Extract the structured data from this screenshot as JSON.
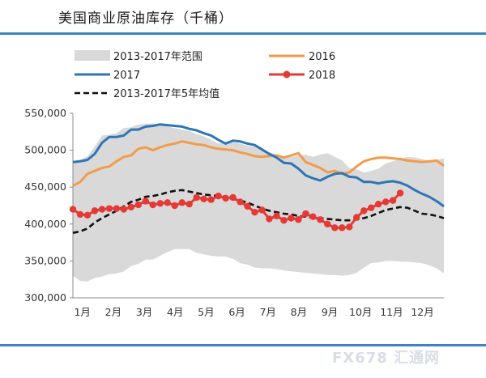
{
  "title": "美国商业原油库存（千桶）",
  "watermark": "FX678 汇通网",
  "chart_data": {
    "type": "line",
    "categories": [
      "1月",
      "2月",
      "3月",
      "4月",
      "5月",
      "6月",
      "7月",
      "8月",
      "9月",
      "10月",
      "11月",
      "12月"
    ],
    "ylim": [
      300000,
      550000
    ],
    "yticks": [
      300000,
      350000,
      400000,
      450000,
      500000,
      550000
    ],
    "ytick_labels": [
      "300,000",
      "350,000",
      "400,000",
      "450,000",
      "500,000",
      "550,000"
    ],
    "xlabel": "",
    "ylabel": "",
    "grid": false,
    "legend_position": "top",
    "range_band": {
      "name": "2013-2017年 范围",
      "color": "#d9d9d9",
      "x": [
        1,
        2,
        3,
        4,
        5,
        6,
        7,
        8,
        9,
        10,
        11,
        12,
        13,
        14,
        15,
        16,
        17,
        18,
        19,
        20,
        21,
        22,
        23,
        24,
        25,
        26,
        27,
        28,
        29,
        30,
        31,
        32,
        33,
        34,
        35,
        36,
        37,
        38,
        39,
        40,
        41,
        42,
        43,
        44,
        45,
        46,
        47,
        48,
        49,
        50,
        51,
        52
      ],
      "upper": [
        485000,
        487000,
        492000,
        505000,
        520000,
        521000,
        523000,
        530000,
        531000,
        535000,
        536000,
        536000,
        534000,
        532000,
        530000,
        528000,
        526000,
        522000,
        519000,
        514000,
        509000,
        512000,
        511000,
        509000,
        506000,
        505000,
        502000,
        497000,
        494000,
        492000,
        491000,
        493000,
        494000,
        491000,
        494000,
        496000,
        491000,
        486000,
        476000,
        474000,
        470000,
        472000,
        475000,
        482000,
        485000,
        488000,
        491000,
        490000,
        488000,
        485000,
        487000,
        489000
      ],
      "lower": [
        330000,
        323000,
        322000,
        327000,
        329000,
        332000,
        333000,
        336000,
        343000,
        346000,
        352000,
        352000,
        357000,
        362000,
        366000,
        366000,
        366000,
        361000,
        359000,
        357000,
        356000,
        356000,
        353000,
        347000,
        345000,
        341000,
        340000,
        340000,
        339000,
        337000,
        336000,
        335000,
        334000,
        333000,
        332000,
        331000,
        331000,
        330000,
        331000,
        334000,
        341000,
        347000,
        348000,
        350000,
        350000,
        349000,
        349000,
        348000,
        347000,
        344000,
        340000,
        333000
      ]
    },
    "series": [
      {
        "name": "2016",
        "color": "#f29b4a",
        "style": "solid",
        "x": [
          1,
          2,
          3,
          4,
          5,
          6,
          7,
          8,
          9,
          10,
          11,
          12,
          13,
          14,
          15,
          16,
          17,
          18,
          19,
          20,
          21,
          22,
          23,
          24,
          25,
          26,
          27,
          28,
          29,
          30,
          31,
          32,
          33,
          34,
          35,
          36,
          37,
          38,
          39,
          40,
          41,
          42,
          43,
          44,
          45,
          46,
          47,
          48,
          49,
          50,
          51,
          52
        ],
        "values": [
          452000,
          457000,
          468000,
          472000,
          476000,
          478000,
          485000,
          491000,
          493000,
          502000,
          504000,
          500000,
          504000,
          507000,
          509000,
          512000,
          510000,
          508000,
          507000,
          504000,
          502000,
          501000,
          500000,
          497000,
          495000,
          492000,
          491000,
          492000,
          493000,
          490000,
          493000,
          496000,
          484000,
          480000,
          476000,
          470000,
          472000,
          468000,
          470000,
          478000,
          485000,
          488000,
          490000,
          490000,
          489000,
          488000,
          486000,
          485000,
          484000,
          485000,
          486000,
          479000
        ]
      },
      {
        "name": "2017",
        "color": "#2f75b5",
        "style": "solid",
        "x": [
          1,
          2,
          3,
          4,
          5,
          6,
          7,
          8,
          9,
          10,
          11,
          12,
          13,
          14,
          15,
          16,
          17,
          18,
          19,
          20,
          21,
          22,
          23,
          24,
          25,
          26,
          27,
          28,
          29,
          30,
          31,
          32,
          33,
          34,
          35,
          36,
          37,
          38,
          39,
          40,
          41,
          42,
          43,
          44,
          45,
          46,
          47,
          48,
          49,
          50,
          51,
          52
        ],
        "values": [
          484000,
          485000,
          487000,
          495000,
          510000,
          518000,
          518000,
          520000,
          528000,
          528000,
          532000,
          533000,
          535000,
          534000,
          533000,
          532000,
          529000,
          527000,
          523000,
          520000,
          514000,
          509000,
          513000,
          512000,
          509000,
          507000,
          501000,
          495000,
          490000,
          483000,
          482000,
          475000,
          466000,
          462000,
          459000,
          464000,
          468000,
          469000,
          464000,
          463000,
          457000,
          457000,
          455000,
          457000,
          458000,
          456000,
          452000,
          446000,
          441000,
          437000,
          431000,
          424000
        ]
      },
      {
        "name": "2018",
        "color": "#e53935",
        "style": "solid-markers",
        "x": [
          1,
          2,
          3,
          4,
          5,
          6,
          7,
          8,
          9,
          10,
          11,
          12,
          13,
          14,
          15,
          16,
          17,
          18,
          19,
          20,
          21,
          22,
          23,
          24,
          25,
          26,
          27,
          28,
          29,
          30,
          31,
          32,
          33,
          34,
          35,
          36,
          37,
          38,
          39,
          40,
          41,
          42,
          43,
          44,
          45,
          46
        ],
        "values": [
          420000,
          413000,
          412000,
          418000,
          420000,
          421000,
          421000,
          420000,
          423000,
          426000,
          431000,
          426000,
          428000,
          429000,
          425000,
          429000,
          427000,
          436000,
          434000,
          433000,
          438000,
          435000,
          436000,
          430000,
          424000,
          416000,
          419000,
          407000,
          411000,
          405000,
          408000,
          406000,
          414000,
          410000,
          406000,
          400000,
          395000,
          395000,
          396000,
          409000,
          418000,
          422000,
          427000,
          430000,
          432000,
          442000
        ]
      },
      {
        "name": "2013-2017年5年 均值",
        "color": "#111111",
        "style": "dashed",
        "x": [
          1,
          2,
          3,
          4,
          5,
          6,
          7,
          8,
          9,
          10,
          11,
          12,
          13,
          14,
          15,
          16,
          17,
          18,
          19,
          20,
          21,
          22,
          23,
          24,
          25,
          26,
          27,
          28,
          29,
          30,
          31,
          32,
          33,
          34,
          35,
          36,
          37,
          38,
          39,
          40,
          41,
          42,
          43,
          44,
          45,
          46,
          47,
          48,
          49,
          50,
          51,
          52
        ],
        "values": [
          388000,
          390000,
          394000,
          402000,
          408000,
          413000,
          418000,
          424000,
          430000,
          433000,
          437000,
          438000,
          440000,
          443000,
          445000,
          446000,
          444000,
          442000,
          440000,
          439000,
          438000,
          437000,
          434000,
          432000,
          429000,
          425000,
          421000,
          418000,
          416000,
          414000,
          413000,
          411000,
          410000,
          409000,
          408000,
          407000,
          406000,
          405000,
          405000,
          406000,
          408000,
          411000,
          415000,
          419000,
          421000,
          423000,
          422000,
          418000,
          414000,
          413000,
          411000,
          408000
        ]
      }
    ],
    "legend": [
      {
        "key": "band",
        "label": "2013-2017年范围"
      },
      {
        "key": "2016",
        "label": "2016"
      },
      {
        "key": "2017",
        "label": "2017"
      },
      {
        "key": "2018",
        "label": "2018"
      },
      {
        "key": "avg",
        "label": "2013-2017年5年均值"
      }
    ]
  }
}
